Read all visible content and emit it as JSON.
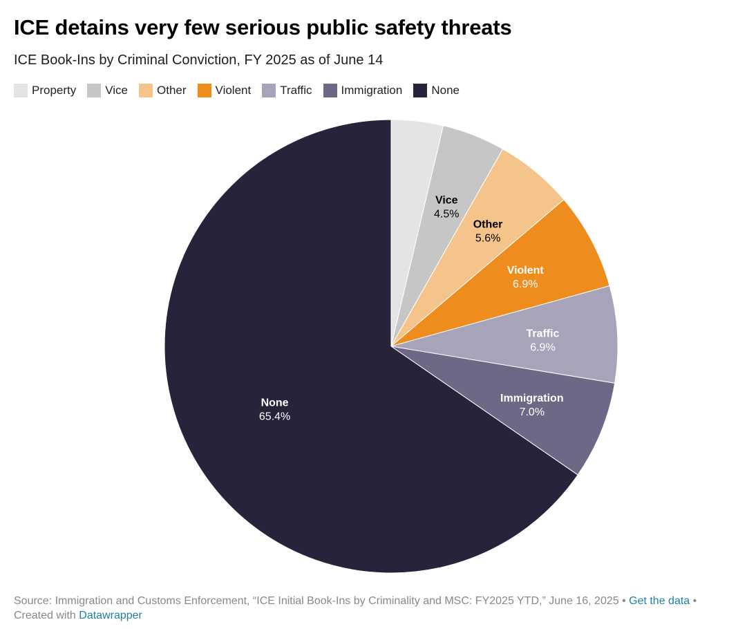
{
  "header": {
    "title": "ICE detains very few serious public safety threats",
    "subtitle": "ICE Book-Ins by Criminal Conviction, FY 2025 as of June 14"
  },
  "chart_data": {
    "type": "pie",
    "title": "ICE detains very few serious public safety threats",
    "subtitle": "ICE Book-Ins by Criminal Conviction, FY 2025 as of June 14",
    "legend_position": "top",
    "categories": [
      "Property",
      "Vice",
      "Other",
      "Violent",
      "Traffic",
      "Immigration",
      "None"
    ],
    "values": [
      3.7,
      4.5,
      5.6,
      6.9,
      6.9,
      7.0,
      65.4
    ],
    "value_labels": [
      "",
      "4.5%",
      "5.6%",
      "6.9%",
      "6.9%",
      "7.0%",
      "65.4%"
    ],
    "show_label": [
      false,
      true,
      true,
      true,
      true,
      true,
      true
    ],
    "colors": [
      "#e4e4e4",
      "#c6c6c6",
      "#f4c48a",
      "#ee8c1e",
      "#a7a3b9",
      "#6f6786",
      "#28223b"
    ],
    "label_colors": [
      "#000000",
      "#000000",
      "#000000",
      "#ffffff",
      "#ffffff",
      "#ffffff",
      "#ffffff"
    ]
  },
  "footer": {
    "source_text": "Source: Immigration and Customs Enforcement, “ICE Initial Book-Ins by Criminality and MSC: FY2025 YTD,” June 16, 2025 • ",
    "get_data_link": "Get the data",
    "created_text": " • Created with ",
    "datawrapper_link": "Datawrapper"
  }
}
